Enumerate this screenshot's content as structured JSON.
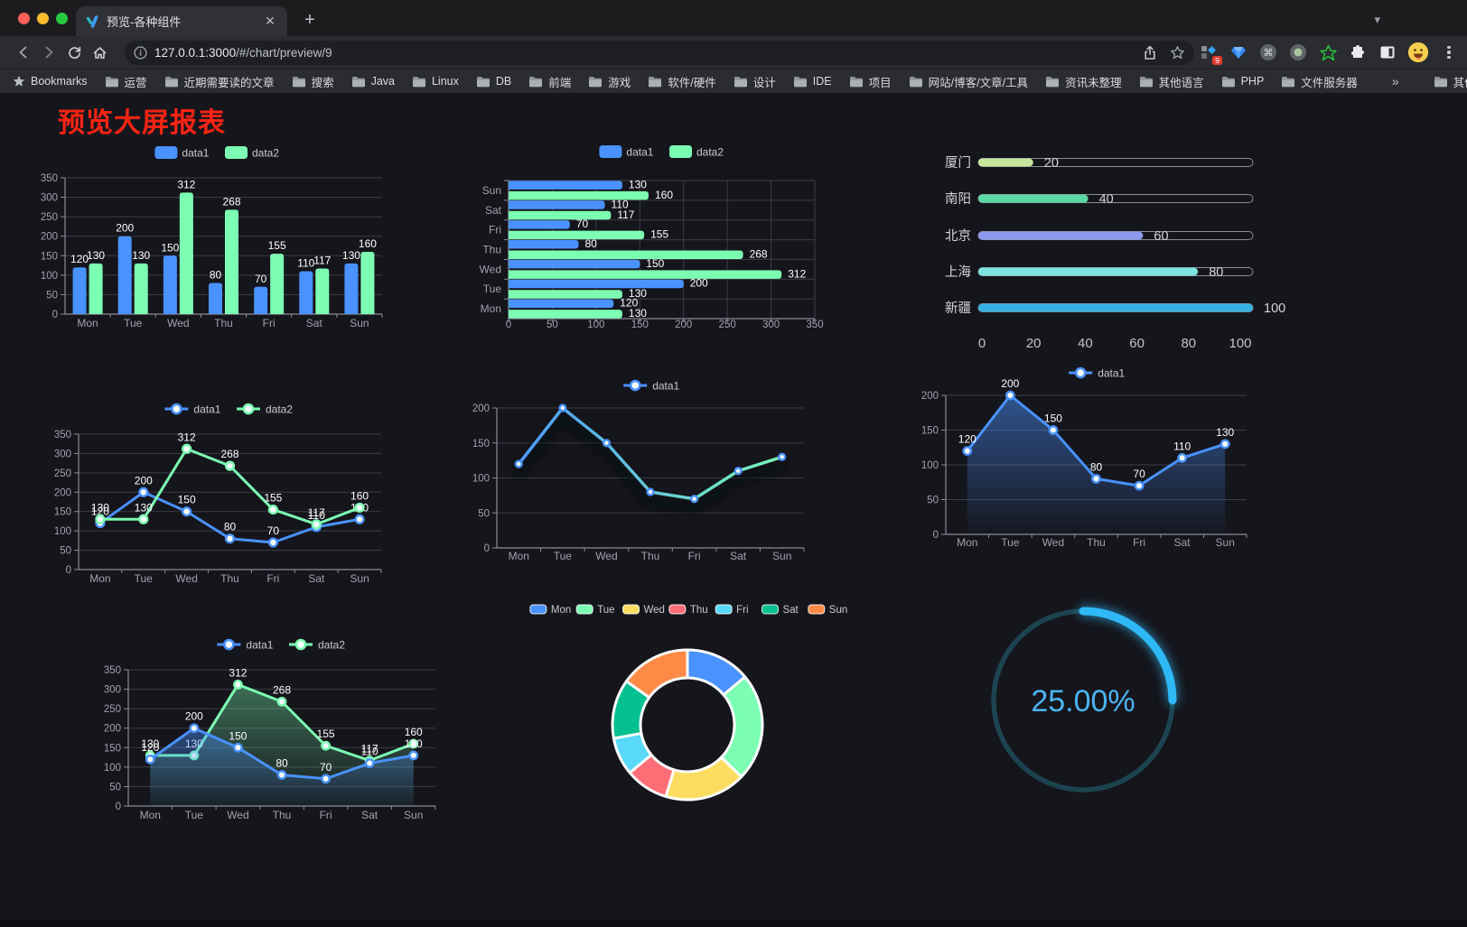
{
  "browser": {
    "tab": {
      "title": "预览-各种组件"
    },
    "toolbar": {
      "url_host": "127.0.0.1:3000",
      "url_path": "/#/chart/preview/9"
    },
    "extensions": {
      "badge_count": "9"
    },
    "bookmarks_bar": {
      "bookmarks_label": "Bookmarks",
      "folders": [
        "运营",
        "近期需要读的文章",
        "搜索",
        "Java",
        "Linux",
        "DB",
        "前端",
        "游戏",
        "软件/硬件",
        "设计",
        "IDE",
        "项目",
        "网站/博客/文章/工具",
        "资讯未整理",
        "其他语言",
        "PHP",
        "文件服务器"
      ],
      "overflow_chevron": "»",
      "other_bookmarks": "其他书签"
    }
  },
  "page": {
    "title": "预览大屏报表",
    "title_color": "#fb2413",
    "background": "#15151c"
  },
  "palette": {
    "data1_blue": "#4992ff",
    "data2_green": "#7cffb2",
    "yellow": "#fddd60",
    "red": "#ff6e76",
    "light_blue": "#58d9f9",
    "teal": "#05c091",
    "orange": "#ff8a45",
    "axis_line": "#8a8c98",
    "grid_line": "#3c3d48",
    "tick_label": "#a0a2ae",
    "value_label": "#ffffff"
  },
  "chart_data": [
    {
      "id": "grouped-bar",
      "type": "bar",
      "categories": [
        "Mon",
        "Tue",
        "Wed",
        "Thu",
        "Fri",
        "Sat",
        "Sun"
      ],
      "series": [
        {
          "name": "data1",
          "color": "#4992ff",
          "values": [
            120,
            200,
            150,
            80,
            70,
            110,
            130
          ]
        },
        {
          "name": "data2",
          "color": "#7cffb2",
          "values": [
            130,
            130,
            312,
            268,
            155,
            117,
            160
          ]
        }
      ],
      "ylim": [
        0,
        350
      ],
      "ytick_step": 50,
      "legend_position": "top",
      "value_labels": true
    },
    {
      "id": "grouped-horizontal-bar",
      "type": "bar-horizontal",
      "categories_top_to_bottom": [
        "Sun",
        "Sat",
        "Fri",
        "Thu",
        "Wed",
        "Tue",
        "Mon"
      ],
      "series": [
        {
          "name": "data1",
          "color": "#4992ff",
          "values_top_to_bottom": [
            130,
            110,
            70,
            80,
            150,
            200,
            120
          ]
        },
        {
          "name": "data2",
          "color": "#7cffb2",
          "values_top_to_bottom": [
            160,
            117,
            155,
            268,
            312,
            130,
            130
          ]
        }
      ],
      "xlim": [
        0,
        350
      ],
      "xtick_step": 50,
      "legend_position": "top",
      "value_labels": true
    },
    {
      "id": "city-progress",
      "type": "bar-progress",
      "items": [
        {
          "label": "厦门",
          "value": 20,
          "color": "#c7e59b"
        },
        {
          "label": "南阳",
          "value": 40,
          "color": "#5bd9a5"
        },
        {
          "label": "北京",
          "value": 60,
          "color": "#8c9bef"
        },
        {
          "label": "上海",
          "value": 80,
          "color": "#7de4e0"
        },
        {
          "label": "新疆",
          "value": 100,
          "color": "#36b1e2"
        }
      ],
      "xlim": [
        0,
        100
      ],
      "xticks": [
        0,
        20,
        40,
        60,
        80,
        100
      ]
    },
    {
      "id": "two-series-line",
      "type": "line",
      "categories": [
        "Mon",
        "Tue",
        "Wed",
        "Thu",
        "Fri",
        "Sat",
        "Sun"
      ],
      "series": [
        {
          "name": "data1",
          "color": "#4992ff",
          "values": [
            120,
            200,
            150,
            80,
            70,
            110,
            130
          ]
        },
        {
          "name": "data2",
          "color": "#7cffb2",
          "values": [
            130,
            130,
            312,
            268,
            155,
            117,
            160
          ]
        }
      ],
      "ylim": [
        0,
        350
      ],
      "ytick_step": 50,
      "legend_position": "top",
      "value_labels": true
    },
    {
      "id": "gradient-line",
      "type": "line",
      "categories": [
        "Mon",
        "Tue",
        "Wed",
        "Thu",
        "Fri",
        "Sat",
        "Sun"
      ],
      "series": [
        {
          "name": "data1",
          "gradient": [
            "#4992ff",
            "#7cffb2"
          ],
          "marker_color": "#4992ff",
          "values": [
            120,
            200,
            150,
            80,
            70,
            110,
            130
          ]
        }
      ],
      "ylim": [
        0,
        200
      ],
      "ytick_step": 50,
      "legend_position": "top",
      "value_labels": false,
      "shadow": true
    },
    {
      "id": "single-area-line",
      "type": "area",
      "categories": [
        "Mon",
        "Tue",
        "Wed",
        "Thu",
        "Fri",
        "Sat",
        "Sun"
      ],
      "series": [
        {
          "name": "data1",
          "color": "#4992ff",
          "values": [
            120,
            200,
            150,
            80,
            70,
            110,
            130
          ]
        }
      ],
      "ylim": [
        0,
        200
      ],
      "ytick_step": 50,
      "legend_position": "top",
      "value_labels": true
    },
    {
      "id": "two-series-area-line",
      "type": "area",
      "categories": [
        "Mon",
        "Tue",
        "Wed",
        "Thu",
        "Fri",
        "Sat",
        "Sun"
      ],
      "series": [
        {
          "name": "data1",
          "color": "#4992ff",
          "values": [
            120,
            200,
            150,
            80,
            70,
            110,
            130
          ]
        },
        {
          "name": "data2",
          "color": "#7cffb2",
          "values": [
            130,
            130,
            312,
            268,
            155,
            117,
            160
          ]
        }
      ],
      "ylim": [
        0,
        350
      ],
      "ytick_step": 50,
      "legend_position": "top",
      "value_labels": true
    },
    {
      "id": "weekday-donut",
      "type": "pie",
      "labels": [
        "Mon",
        "Tue",
        "Wed",
        "Thu",
        "Fri",
        "Sat",
        "Sun"
      ],
      "values": [
        120,
        200,
        150,
        80,
        70,
        110,
        130
      ],
      "colors": [
        "#4992ff",
        "#7cffb2",
        "#fddd60",
        "#ff6e76",
        "#58d9f9",
        "#05c091",
        "#ff8a45"
      ],
      "donut": true,
      "legend_position": "top"
    },
    {
      "id": "progress-gauge",
      "type": "gauge",
      "value": 25,
      "max": 100,
      "display_text": "25.00%",
      "progress_color": "#2eb9f6",
      "track_color": "#1c4450",
      "text_color": "#4cb4f0"
    }
  ]
}
